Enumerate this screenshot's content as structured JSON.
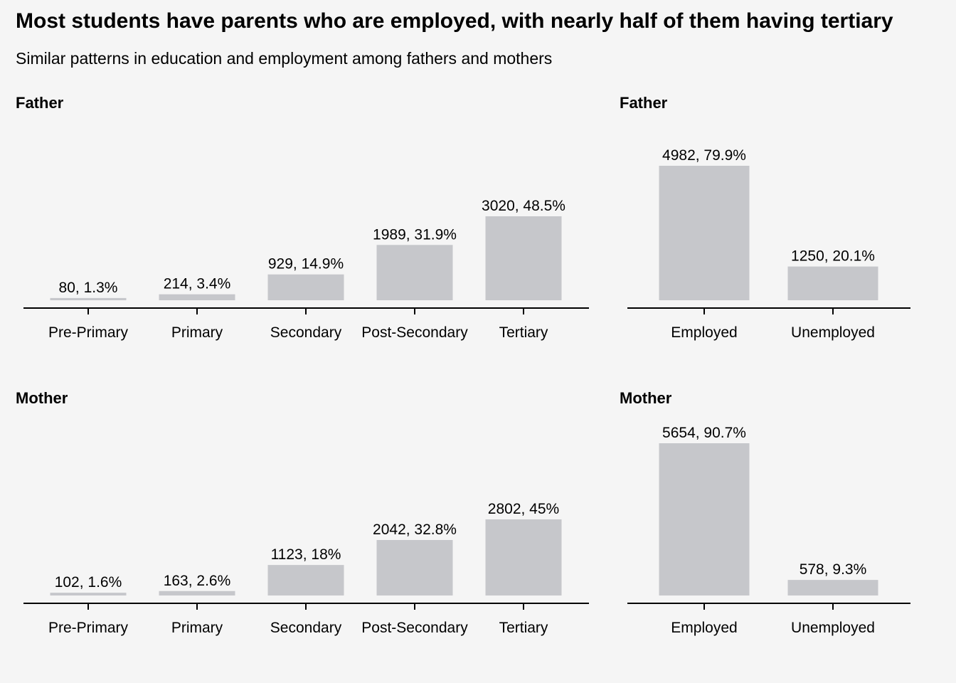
{
  "title": "Most students have parents who are employed, with nearly half of them having tertiary",
  "subtitle": "Similar patterns in education and employment among fathers and mothers",
  "colors": {
    "bar": "#c6c7cb",
    "axis": "#000000",
    "background": "#f5f5f5"
  },
  "chart_data": [
    {
      "type": "bar",
      "title": "Father",
      "categories": [
        "Pre-Primary",
        "Primary",
        "Secondary",
        "Post-Secondary",
        "Tertiary"
      ],
      "values": [
        80,
        214,
        929,
        1989,
        3020
      ],
      "data_labels": [
        "80, 1.3%",
        "214, 3.4%",
        "929, 14.9%",
        "1989, 31.9%",
        "3020, 48.5%"
      ],
      "ylim": [
        0,
        3100
      ]
    },
    {
      "type": "bar",
      "title": "Father",
      "categories": [
        "Employed",
        "Unemployed"
      ],
      "values": [
        4982,
        1250
      ],
      "data_labels": [
        "4982, 79.9%",
        "1250, 20.1%"
      ],
      "ylim": [
        0,
        5000
      ]
    },
    {
      "type": "bar",
      "title": "Mother",
      "categories": [
        "Pre-Primary",
        "Primary",
        "Secondary",
        "Post-Secondary",
        "Tertiary"
      ],
      "values": [
        102,
        163,
        1123,
        2042,
        2802
      ],
      "data_labels": [
        "102, 1.6%",
        "163, 2.6%",
        "1123, 18%",
        "2042, 32.8%",
        "2802, 45%"
      ],
      "ylim": [
        0,
        2900
      ]
    },
    {
      "type": "bar",
      "title": "Mother",
      "categories": [
        "Employed",
        "Unemployed"
      ],
      "values": [
        5654,
        578
      ],
      "data_labels": [
        "5654, 90.7%",
        "578, 9.3%"
      ],
      "ylim": [
        0,
        5654
      ]
    }
  ]
}
